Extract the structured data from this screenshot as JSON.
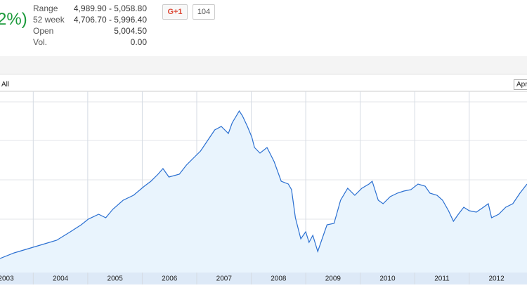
{
  "header": {
    "change": "2%)",
    "stats": [
      {
        "label": "Range",
        "value": "4,989.90 - 5,058.80"
      },
      {
        "label": "52 week",
        "value": "4,706.70 - 5,996.40"
      },
      {
        "label": "Open",
        "value": "5,004.50"
      },
      {
        "label": "Vol.",
        "value": "0.00"
      }
    ],
    "plus_button": "G+1",
    "plus_count": "104"
  },
  "toolbar": {
    "range_all": "All",
    "date_field": "Apr"
  },
  "chart_data": {
    "type": "line",
    "x": [
      2003.39,
      2003.65,
      2003.91,
      2004.17,
      2004.43,
      2004.68,
      2004.88,
      2005.01,
      2005.2,
      2005.33,
      2005.46,
      2005.65,
      2005.84,
      2006.04,
      2006.16,
      2006.29,
      2006.38,
      2006.49,
      2006.68,
      2006.81,
      2006.94,
      2007.07,
      2007.2,
      2007.33,
      2007.45,
      2007.58,
      2007.65,
      2007.78,
      2007.84,
      2007.93,
      2008.01,
      2008.06,
      2008.16,
      2008.29,
      2008.42,
      2008.55,
      2008.68,
      2008.74,
      2008.81,
      2008.91,
      2009.0,
      2009.06,
      2009.13,
      2009.22,
      2009.3,
      2009.39,
      2009.52,
      2009.64,
      2009.77,
      2009.9,
      2010.03,
      2010.16,
      2010.22,
      2010.33,
      2010.42,
      2010.55,
      2010.68,
      2010.8,
      2010.93,
      2011.06,
      2011.19,
      2011.28,
      2011.41,
      2011.51,
      2011.62,
      2011.71,
      2011.8,
      2011.9,
      2012.0,
      2012.13,
      2012.26,
      2012.35,
      2012.41,
      2012.54,
      2012.67,
      2012.8,
      2012.93,
      2013.06
    ],
    "values": [
      20,
      28,
      34,
      40,
      46,
      58,
      68,
      76,
      83,
      78,
      90,
      103,
      110,
      123,
      130,
      140,
      148,
      136,
      140,
      153,
      163,
      173,
      188,
      203,
      208,
      198,
      213,
      230,
      223,
      208,
      193,
      178,
      170,
      178,
      158,
      130,
      126,
      118,
      78,
      48,
      58,
      43,
      53,
      30,
      48,
      68,
      70,
      103,
      120,
      110,
      120,
      126,
      130,
      103,
      98,
      108,
      113,
      116,
      118,
      126,
      123,
      113,
      110,
      103,
      88,
      73,
      83,
      93,
      88,
      86,
      93,
      98,
      78,
      83,
      93,
      98,
      113,
      126
    ],
    "xlim": [
      2003.39,
      2013.06
    ],
    "ylim": [
      0,
      258
    ],
    "xticks": [
      {
        "value": 2003,
        "label": "2003"
      },
      {
        "value": 2004,
        "label": "2004"
      },
      {
        "value": 2005,
        "label": "2005"
      },
      {
        "value": 2006,
        "label": "2006"
      },
      {
        "value": 2007,
        "label": "2007"
      },
      {
        "value": 2008,
        "label": "2008"
      },
      {
        "value": 2009,
        "label": "2009"
      },
      {
        "value": 2010,
        "label": "2010"
      },
      {
        "value": 2011,
        "label": "2011"
      },
      {
        "value": 2012,
        "label": "2012"
      }
    ],
    "color": "#2a6fd1",
    "fill": "#e9f4fd",
    "grid": true
  }
}
